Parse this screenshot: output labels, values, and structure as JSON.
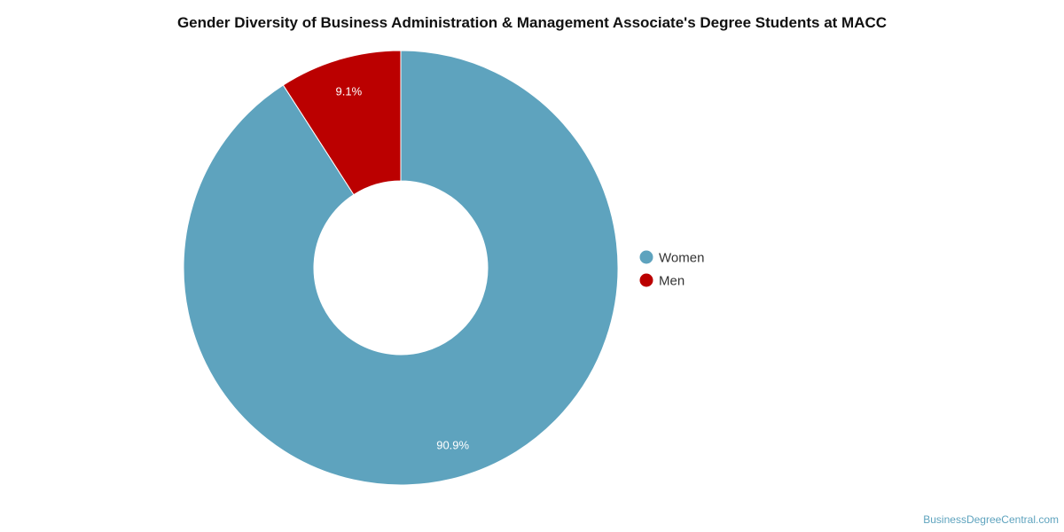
{
  "chart_data": {
    "type": "pie",
    "title": "Gender Diversity of Business Administration & Management Associate's Degree Students at MACC",
    "donut": true,
    "legend_position": "right",
    "slices": [
      {
        "label": "Women",
        "value": 90.9,
        "value_label": "90.9%",
        "color": "#5ea3be"
      },
      {
        "label": "Men",
        "value": 9.1,
        "value_label": "9.1%",
        "color": "#bb0000"
      }
    ]
  },
  "credit": "BusinessDegreeCentral.com"
}
